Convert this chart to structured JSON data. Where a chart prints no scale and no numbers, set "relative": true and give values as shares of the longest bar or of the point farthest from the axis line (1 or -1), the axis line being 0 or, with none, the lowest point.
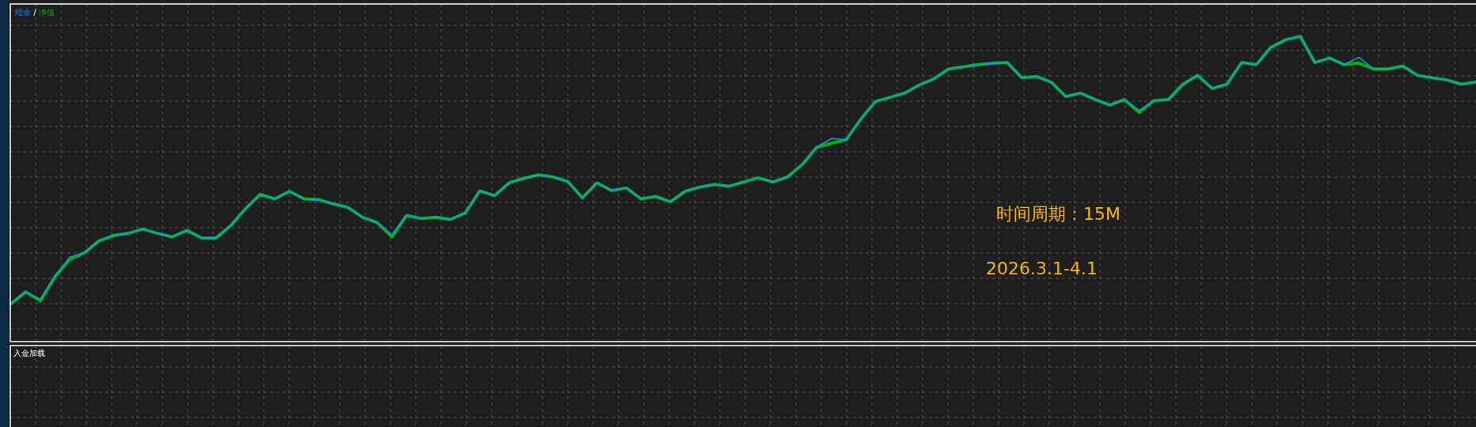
{
  "chart_data": [
    {
      "type": "line",
      "relative": true,
      "grid": true,
      "legend": "top left",
      "categories": [
        null,
        null,
        null,
        null,
        null,
        null,
        null,
        null,
        null,
        null,
        null,
        null,
        null,
        null,
        null,
        null,
        null,
        null,
        null,
        null,
        null,
        null,
        null,
        null,
        null,
        null,
        null,
        null,
        null,
        null,
        null,
        null,
        null,
        null,
        null,
        null,
        null,
        null,
        null,
        null,
        null,
        null,
        null,
        null,
        null,
        null,
        null,
        null,
        null,
        null,
        null,
        null,
        null,
        null,
        null,
        null,
        null,
        null,
        null,
        null,
        null,
        null,
        null,
        null,
        null,
        null,
        null,
        null,
        null,
        null,
        null,
        null,
        null,
        null,
        null,
        null,
        null,
        null,
        null,
        null,
        null,
        null,
        null,
        null,
        null,
        null,
        null,
        null,
        null,
        null,
        null,
        null,
        null,
        null,
        null,
        null,
        null,
        null,
        null,
        null,
        null
      ],
      "series": [
        {
          "name": "净值",
          "color": "#00b400",
          "values": [
            0,
            0.044,
            0.01,
            0.101,
            0.165,
            0.19,
            0.235,
            0.255,
            0.263,
            0.279,
            0.263,
            0.25,
            0.274,
            0.246,
            0.246,
            0.292,
            0.355,
            0.409,
            0.392,
            0.42,
            0.392,
            0.389,
            0.373,
            0.36,
            0.323,
            0.303,
            0.25,
            0.33,
            0.319,
            0.323,
            0.315,
            0.339,
            0.422,
            0.404,
            0.452,
            0.469,
            0.482,
            0.474,
            0.457,
            0.396,
            0.452,
            0.423,
            0.433,
            0.392,
            0.401,
            0.381,
            0.42,
            0.436,
            0.446,
            0.439,
            0.455,
            0.471,
            0.455,
            0.474,
            0.52,
            0.585,
            0.6,
            0.613,
            0.69,
            0.756,
            0.772,
            0.788,
            0.818,
            0.841,
            0.878,
            0.886,
            0.894,
            0.899,
            0.902,
            0.845,
            0.85,
            0.829,
            0.775,
            0.788,
            0.764,
            0.743,
            0.764,
            0.715,
            0.759,
            0.764,
            0.821,
            0.854,
            0.805,
            0.821,
            0.902,
            0.894,
            0.959,
            0.987,
            1.0,
            0.902,
            0.919,
            0.894,
            0.9,
            0.878,
            0.878,
            0.889,
            0.854,
            0.845,
            0.837,
            0.821,
            0.829
          ]
        },
        {
          "name": "结余",
          "color": "#1e90ff",
          "values": [
            0,
            0.044,
            0.016,
            0.101,
            0.174,
            0.19,
            0.235,
            0.255,
            0.263,
            0.279,
            0.263,
            0.25,
            0.274,
            0.246,
            0.246,
            0.292,
            0.355,
            0.409,
            0.392,
            0.42,
            0.392,
            0.389,
            0.373,
            0.36,
            0.323,
            0.303,
            0.258,
            0.33,
            0.319,
            0.323,
            0.315,
            0.339,
            0.422,
            0.404,
            0.452,
            0.469,
            0.482,
            0.474,
            0.457,
            0.396,
            0.452,
            0.423,
            0.433,
            0.392,
            0.401,
            0.381,
            0.42,
            0.436,
            0.446,
            0.439,
            0.455,
            0.471,
            0.455,
            0.474,
            0.52,
            0.585,
            0.618,
            0.613,
            0.69,
            0.756,
            0.772,
            0.788,
            0.818,
            0.841,
            0.878,
            0.886,
            0.894,
            0.899,
            0.902,
            0.845,
            0.85,
            0.829,
            0.775,
            0.788,
            0.764,
            0.743,
            0.764,
            0.723,
            0.759,
            0.764,
            0.821,
            0.854,
            0.805,
            0.821,
            0.902,
            0.894,
            0.959,
            0.987,
            1.0,
            0.902,
            0.919,
            0.894,
            0.922,
            0.878,
            0.878,
            0.889,
            0.854,
            0.845,
            0.837,
            0.821,
            0.829
          ]
        }
      ],
      "annotations": [
        "/",
        "时间周期：15M",
        "2026.3.1-4.1"
      ]
    },
    {
      "type": "other",
      "title": "入金加载"
    }
  ]
}
